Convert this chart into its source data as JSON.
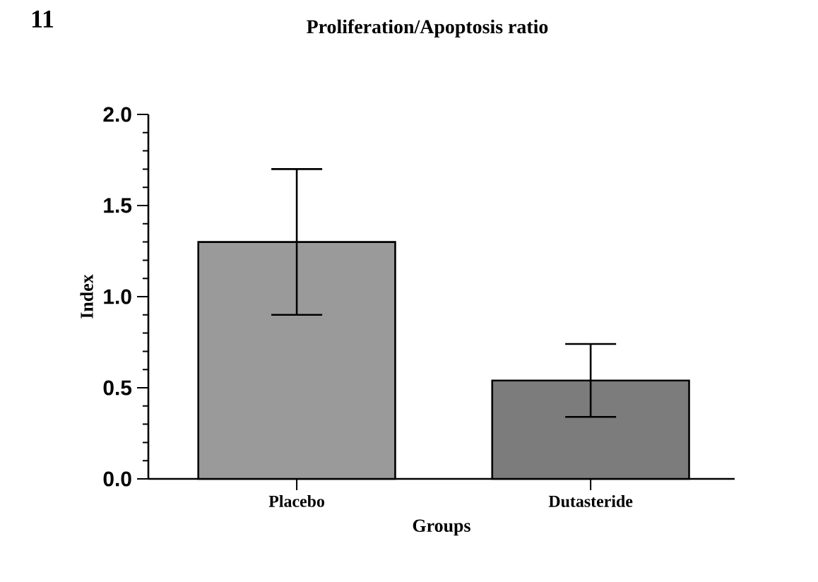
{
  "chart_data": {
    "type": "bar",
    "title": "Proliferation/Apoptosis ratio",
    "xlabel": "Groups",
    "ylabel": "Index",
    "categories": [
      "Placebo",
      "Dutasteride"
    ],
    "values": [
      1.3,
      0.54
    ],
    "errors": [
      0.4,
      0.2
    ],
    "colors": [
      "#9a9a9a",
      "#7c7c7c"
    ],
    "ylim": [
      0,
      2.0
    ],
    "yticks": [
      {
        "value": 0,
        "label": "0.0"
      },
      {
        "value": 0.5,
        "label": "0.5"
      },
      {
        "value": 1.0,
        "label": "1.0"
      },
      {
        "value": 1.5,
        "label": "1.5"
      },
      {
        "value": 2.0,
        "label": "2.0"
      }
    ],
    "annotations": [
      "11"
    ]
  }
}
